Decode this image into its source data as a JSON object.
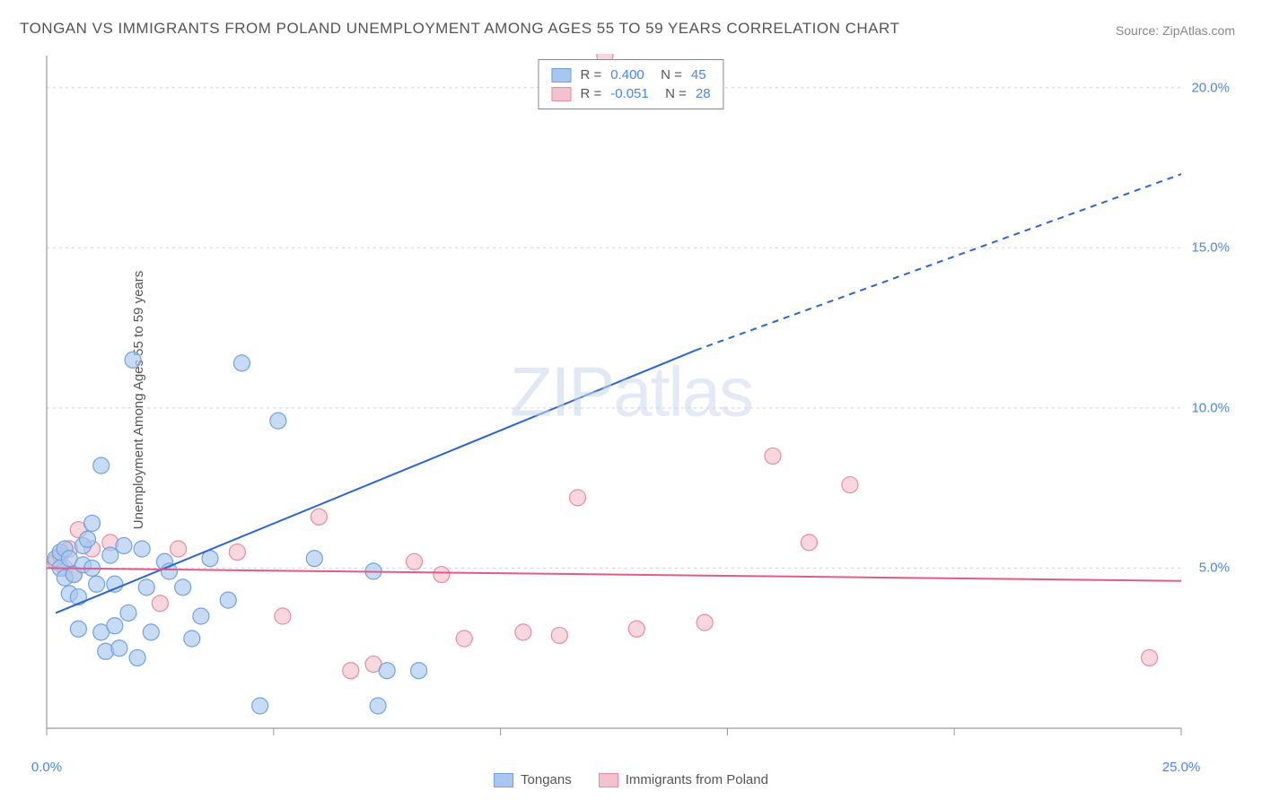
{
  "title": "TONGAN VS IMMIGRANTS FROM POLAND UNEMPLOYMENT AMONG AGES 55 TO 59 YEARS CORRELATION CHART",
  "source_label": "Source:",
  "source_name": "ZipAtlas.com",
  "y_axis_label": "Unemployment Among Ages 55 to 59 years",
  "watermark_bold": "ZIP",
  "watermark_thin": "atlas",
  "chart": {
    "type": "scatter",
    "xlim": [
      0,
      25
    ],
    "ylim": [
      0,
      21
    ],
    "x_ticks": [
      0,
      5,
      10,
      15,
      20,
      25
    ],
    "x_tick_labels": [
      "0.0%",
      "",
      "",
      "",
      "",
      "25.0%"
    ],
    "y_ticks": [
      5,
      10,
      15,
      20
    ],
    "y_tick_labels": [
      "5.0%",
      "10.0%",
      "15.0%",
      "20.0%"
    ],
    "grid_color": "#d0d0d0",
    "background_color": "#ffffff",
    "axis_color": "#999999",
    "tick_color": "#999999",
    "series": [
      {
        "name": "Tongans",
        "color_fill": "#a9c7ee",
        "color_stroke": "#6fa3e0",
        "marker_radius": 9,
        "marker_opacity": 0.65,
        "R": "0.400",
        "N": "45",
        "trend": {
          "x1": 0.2,
          "y1": 3.6,
          "x2": 14.3,
          "y2": 11.8,
          "dash_from_x": 14.3,
          "x3": 25,
          "y3": 17.3,
          "color": "#2a66d1",
          "width": 2
        },
        "points": [
          [
            0.2,
            5.3
          ],
          [
            0.3,
            5.0
          ],
          [
            0.3,
            5.5
          ],
          [
            0.4,
            5.6
          ],
          [
            0.4,
            4.7
          ],
          [
            0.5,
            5.3
          ],
          [
            0.5,
            4.2
          ],
          [
            0.6,
            4.8
          ],
          [
            0.7,
            3.1
          ],
          [
            0.7,
            4.1
          ],
          [
            0.8,
            5.1
          ],
          [
            0.8,
            5.7
          ],
          [
            0.9,
            5.9
          ],
          [
            1.0,
            6.4
          ],
          [
            1.0,
            5.0
          ],
          [
            1.1,
            4.5
          ],
          [
            1.2,
            8.2
          ],
          [
            1.2,
            3.0
          ],
          [
            1.3,
            2.4
          ],
          [
            1.4,
            5.4
          ],
          [
            1.5,
            4.5
          ],
          [
            1.5,
            3.2
          ],
          [
            1.6,
            2.5
          ],
          [
            1.7,
            5.7
          ],
          [
            1.8,
            3.6
          ],
          [
            1.9,
            11.5
          ],
          [
            2.0,
            2.2
          ],
          [
            2.1,
            5.6
          ],
          [
            2.2,
            4.4
          ],
          [
            2.3,
            3.0
          ],
          [
            2.6,
            5.2
          ],
          [
            2.7,
            4.9
          ],
          [
            3.0,
            4.4
          ],
          [
            3.2,
            2.8
          ],
          [
            3.4,
            3.5
          ],
          [
            3.6,
            5.3
          ],
          [
            4.0,
            4.0
          ],
          [
            4.3,
            11.4
          ],
          [
            4.7,
            0.7
          ],
          [
            5.1,
            9.6
          ],
          [
            5.9,
            5.3
          ],
          [
            7.2,
            4.9
          ],
          [
            7.5,
            1.8
          ],
          [
            7.3,
            0.7
          ],
          [
            8.2,
            1.8
          ]
        ]
      },
      {
        "name": "Immigrants from Poland",
        "color_fill": "#f4c2ce",
        "color_stroke": "#e78ba2",
        "marker_radius": 9,
        "marker_opacity": 0.65,
        "R": "-0.051",
        "N": "28",
        "trend": {
          "x1": 0,
          "y1": 5.0,
          "x2": 25,
          "y2": 4.6,
          "color": "#e05b8a",
          "width": 2
        },
        "points": [
          [
            0.2,
            5.2
          ],
          [
            0.3,
            5.4
          ],
          [
            0.4,
            5.0
          ],
          [
            0.5,
            5.6
          ],
          [
            0.6,
            4.8
          ],
          [
            0.7,
            6.2
          ],
          [
            1.0,
            5.6
          ],
          [
            1.4,
            5.8
          ],
          [
            2.5,
            3.9
          ],
          [
            2.9,
            5.6
          ],
          [
            4.2,
            5.5
          ],
          [
            5.2,
            3.5
          ],
          [
            6.0,
            6.6
          ],
          [
            6.7,
            1.8
          ],
          [
            7.2,
            2.0
          ],
          [
            8.1,
            5.2
          ],
          [
            8.7,
            4.8
          ],
          [
            9.2,
            2.8
          ],
          [
            10.5,
            3.0
          ],
          [
            11.3,
            2.9
          ],
          [
            11.7,
            7.2
          ],
          [
            13.0,
            3.1
          ],
          [
            14.5,
            3.3
          ],
          [
            16.0,
            8.5
          ],
          [
            16.8,
            5.8
          ],
          [
            17.7,
            7.6
          ],
          [
            24.3,
            2.2
          ],
          [
            12.3,
            21.0
          ]
        ]
      }
    ]
  },
  "legend_bottom": [
    {
      "label": "Tongans",
      "fill": "#a9c7ee",
      "stroke": "#6fa3e0"
    },
    {
      "label": "Immigrants from Poland",
      "fill": "#f4c2ce",
      "stroke": "#e78ba2"
    }
  ]
}
